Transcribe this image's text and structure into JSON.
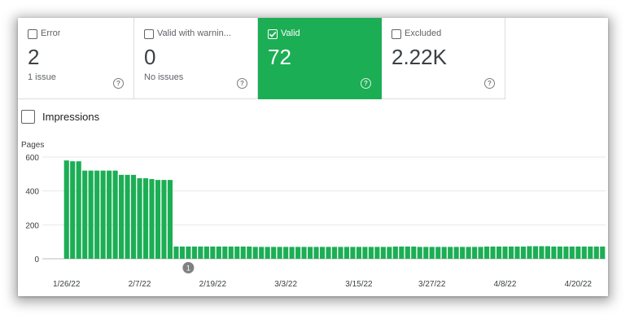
{
  "cards": [
    {
      "label": "Error",
      "value": "2",
      "sub": "1 issue",
      "selected": false
    },
    {
      "label": "Valid with warnin...",
      "value": "0",
      "sub": "No issues",
      "selected": false
    },
    {
      "label": "Valid",
      "value": "72",
      "sub": "",
      "selected": true
    },
    {
      "label": "Excluded",
      "value": "2.22K",
      "sub": "",
      "selected": false
    }
  ],
  "help_glyph": "?",
  "impressions": {
    "label": "Impressions",
    "checked": false
  },
  "chart_data": {
    "type": "bar",
    "ylabel": "Pages",
    "ylim": [
      0,
      600
    ],
    "yticks": [
      0,
      200,
      400,
      600
    ],
    "bar_color": "#1cae55",
    "x_tick_labels": [
      {
        "label": "1/26/22",
        "index": 0
      },
      {
        "label": "2/7/22",
        "index": 12
      },
      {
        "label": "2/19/22",
        "index": 24
      },
      {
        "label": "3/3/22",
        "index": 36
      },
      {
        "label": "3/15/22",
        "index": 48
      },
      {
        "label": "3/27/22",
        "index": 60
      },
      {
        "label": "4/8/22",
        "index": 72
      },
      {
        "label": "4/20/22",
        "index": 84
      }
    ],
    "annotation": {
      "label": "1",
      "index": 20
    },
    "values": [
      580,
      575,
      575,
      520,
      520,
      520,
      520,
      520,
      520,
      495,
      495,
      495,
      475,
      475,
      470,
      465,
      465,
      465,
      72,
      72,
      72,
      72,
      72,
      72,
      72,
      72,
      72,
      72,
      72,
      72,
      72,
      70,
      70,
      70,
      70,
      70,
      70,
      70,
      70,
      70,
      70,
      70,
      70,
      70,
      70,
      70,
      70,
      70,
      70,
      70,
      70,
      70,
      70,
      70,
      72,
      72,
      72,
      72,
      70,
      70,
      70,
      70,
      70,
      70,
      70,
      70,
      70,
      70,
      70,
      72,
      72,
      72,
      72,
      72,
      72,
      72,
      74,
      74,
      74,
      74,
      72,
      72,
      72,
      72,
      72,
      72,
      72,
      72,
      72
    ]
  }
}
